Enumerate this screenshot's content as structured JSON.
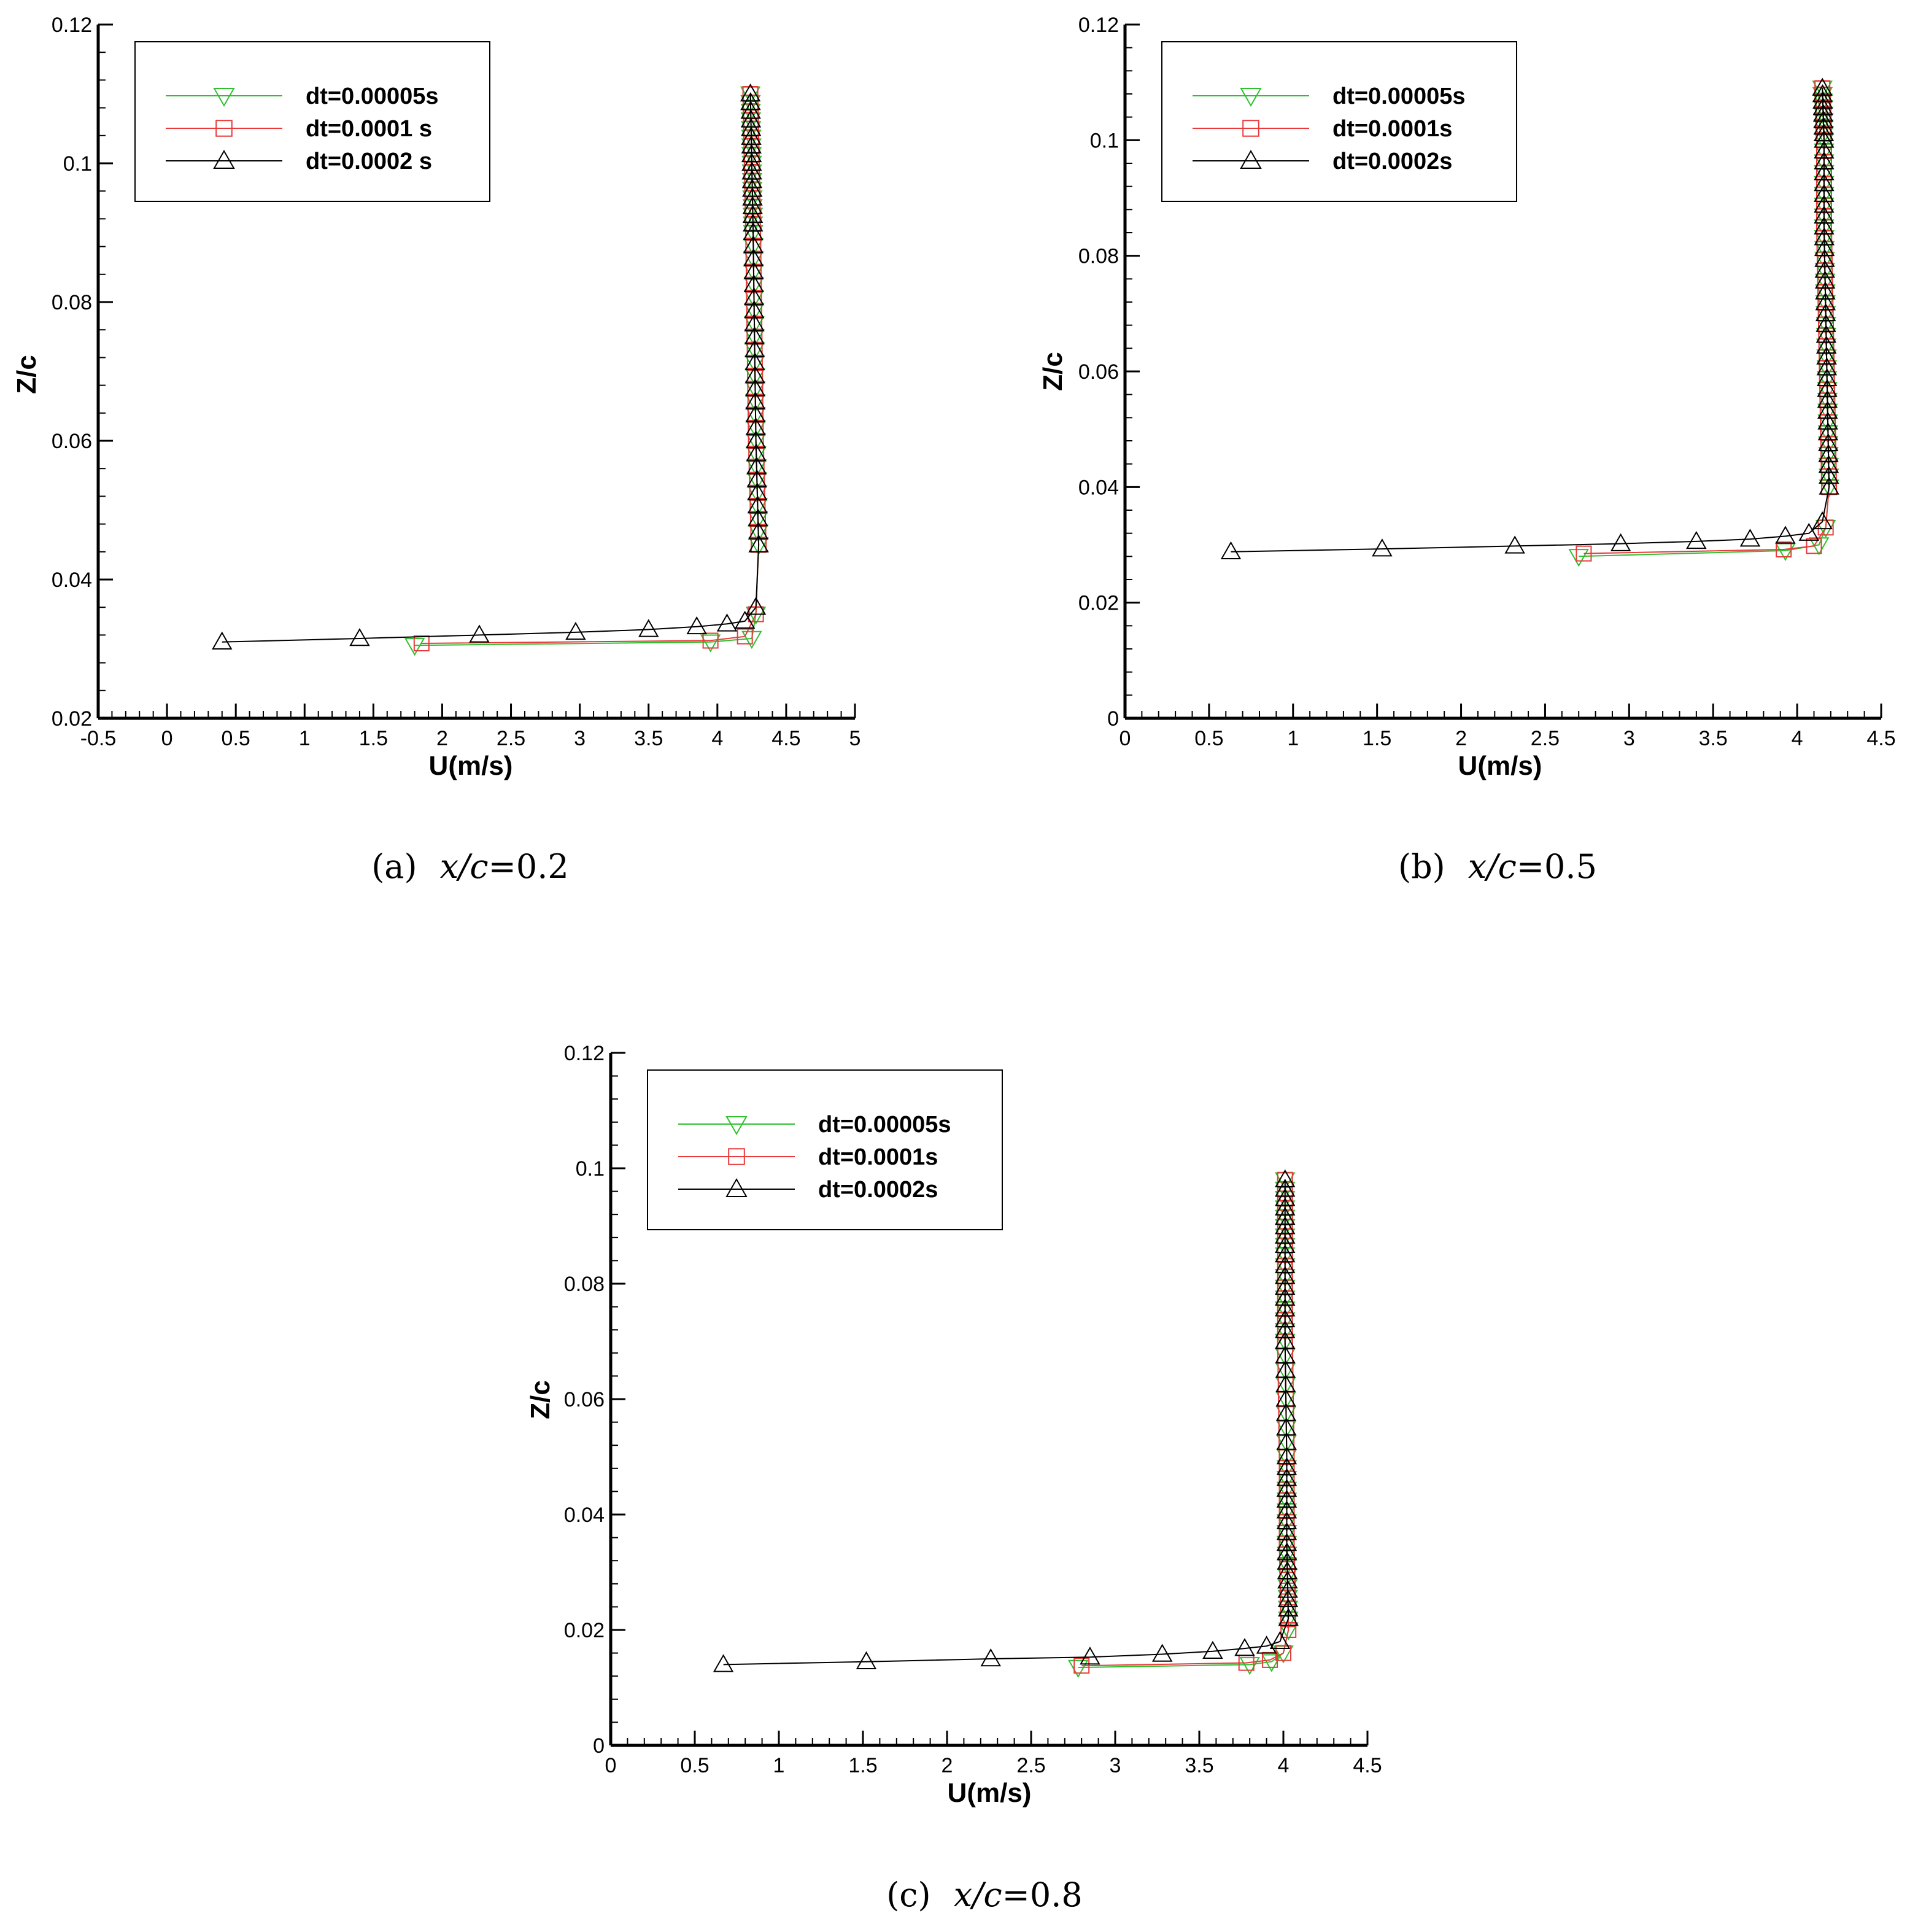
{
  "figure": {
    "panels": [
      {
        "caption_label": "(a)",
        "caption_expr": "x/c",
        "caption_value": "=0.2"
      },
      {
        "caption_label": "(b)",
        "caption_expr": "x/c",
        "caption_value": "=0.5"
      },
      {
        "caption_label": "(c)",
        "caption_expr": "x/c",
        "caption_value": "=0.8"
      }
    ]
  },
  "colors": {
    "dt_00005": "#2fbf2f",
    "dt_0001": "#e83a3a",
    "dt_0002": "#000000"
  },
  "chart_data": [
    {
      "type": "line",
      "xlabel": "U(m/s)",
      "ylabel": "Z/c",
      "xlim": [
        -0.5,
        5
      ],
      "ylim": [
        0.02,
        0.12
      ],
      "xticks": [
        -0.5,
        0,
        0.5,
        1,
        1.5,
        2,
        2.5,
        3,
        3.5,
        4,
        4.5,
        5
      ],
      "xtick_labels": [
        "-0.5",
        "0",
        "0.5",
        "1",
        "1.5",
        "2",
        "2.5",
        "3",
        "3.5",
        "4",
        "4.5",
        "5"
      ],
      "yticks": [
        0.02,
        0.04,
        0.06,
        0.08,
        0.1,
        0.12
      ],
      "ytick_labels": [
        "0.02",
        "0.04",
        "0.06",
        "0.08",
        "0.1",
        "0.12"
      ],
      "legend_position": "top-left",
      "series": [
        {
          "name": "dt=0.00005s",
          "marker": "triangle-down",
          "color": "#2fbf2f",
          "x": [
            1.8,
            3.95,
            4.25,
            4.28,
            4.3,
            4.28,
            4.27,
            4.26,
            4.25,
            4.24
          ],
          "y": [
            0.0305,
            0.031,
            0.0315,
            0.035,
            0.045,
            0.06,
            0.075,
            0.09,
            0.1,
            0.11
          ]
        },
        {
          "name": "dt=0.0001 s",
          "marker": "square",
          "color": "#e83a3a",
          "x": [
            1.85,
            3.95,
            4.2,
            4.28,
            4.3,
            4.28,
            4.27,
            4.26,
            4.25,
            4.24
          ],
          "y": [
            0.0308,
            0.0312,
            0.0318,
            0.035,
            0.045,
            0.06,
            0.075,
            0.09,
            0.1,
            0.11
          ]
        },
        {
          "name": "dt=0.0002 s",
          "marker": "triangle-up",
          "color": "#000000",
          "x": [
            0.4,
            1.4,
            2.27,
            2.97,
            3.5,
            3.85,
            4.07,
            4.2,
            4.28,
            4.3,
            4.28,
            4.27,
            4.26,
            4.25,
            4.24
          ],
          "y": [
            0.031,
            0.0315,
            0.032,
            0.0324,
            0.0328,
            0.0332,
            0.0336,
            0.034,
            0.036,
            0.045,
            0.06,
            0.075,
            0.09,
            0.1,
            0.11
          ]
        }
      ]
    },
    {
      "type": "line",
      "xlabel": "U(m/s)",
      "ylabel": "Z/c",
      "xlim": [
        0,
        4.5
      ],
      "ylim": [
        0,
        0.12
      ],
      "xticks": [
        0,
        0.5,
        1,
        1.5,
        2,
        2.5,
        3,
        3.5,
        4,
        4.5
      ],
      "xtick_labels": [
        "0",
        "0.5",
        "1",
        "1.5",
        "2",
        "2.5",
        "3",
        "3.5",
        "4",
        "4.5"
      ],
      "yticks": [
        0,
        0.02,
        0.04,
        0.06,
        0.08,
        0.1,
        0.12
      ],
      "ytick_labels": [
        "0",
        "0.02",
        "0.04",
        "0.06",
        "0.08",
        "0.1",
        "0.12"
      ],
      "legend_position": "top-left",
      "series": [
        {
          "name": "dt=0.00005s",
          "marker": "triangle-down",
          "color": "#2fbf2f",
          "x": [
            2.7,
            3.93,
            4.13,
            4.17,
            4.19,
            4.18,
            4.17,
            4.16,
            4.16,
            4.15
          ],
          "y": [
            0.028,
            0.029,
            0.03,
            0.033,
            0.04,
            0.055,
            0.07,
            0.085,
            0.1,
            0.109
          ]
        },
        {
          "name": "dt=0.0001s",
          "marker": "square",
          "color": "#e83a3a",
          "x": [
            2.73,
            3.92,
            4.1,
            4.17,
            4.19,
            4.18,
            4.17,
            4.16,
            4.16,
            4.15
          ],
          "y": [
            0.0285,
            0.0292,
            0.0298,
            0.033,
            0.04,
            0.055,
            0.07,
            0.085,
            0.1,
            0.109
          ]
        },
        {
          "name": "dt=0.0002s",
          "marker": "triangle-up",
          "color": "#000000",
          "x": [
            0.63,
            1.53,
            2.32,
            2.95,
            3.4,
            3.72,
            3.93,
            4.07,
            4.15,
            4.19,
            4.18,
            4.17,
            4.16,
            4.16,
            4.15
          ],
          "y": [
            0.0288,
            0.0293,
            0.0298,
            0.0302,
            0.0306,
            0.031,
            0.0315,
            0.032,
            0.034,
            0.04,
            0.055,
            0.07,
            0.085,
            0.1,
            0.109
          ]
        }
      ]
    },
    {
      "type": "line",
      "xlabel": "U(m/s)",
      "ylabel": "Z/c",
      "xlim": [
        0,
        4.5
      ],
      "ylim": [
        0,
        0.12
      ],
      "xticks": [
        0,
        0.5,
        1,
        1.5,
        2,
        2.5,
        3,
        3.5,
        4,
        4.5
      ],
      "xtick_labels": [
        "0",
        "0.5",
        "1",
        "1.5",
        "2",
        "2.5",
        "3",
        "3.5",
        "4",
        "4.5"
      ],
      "yticks": [
        0,
        0.02,
        0.04,
        0.06,
        0.08,
        0.1,
        0.12
      ],
      "ytick_labels": [
        "0",
        "0.02",
        "0.04",
        "0.06",
        "0.08",
        "0.1",
        "0.12"
      ],
      "legend_position": "top-left",
      "series": [
        {
          "name": "dt=0.00005s",
          "marker": "triangle-down",
          "color": "#2fbf2f",
          "x": [
            2.78,
            3.8,
            3.93,
            4.0,
            4.03,
            4.02,
            4.02,
            4.01,
            4.01,
            4.01
          ],
          "y": [
            0.0135,
            0.014,
            0.0145,
            0.016,
            0.02,
            0.035,
            0.05,
            0.07,
            0.085,
            0.098
          ]
        },
        {
          "name": "dt=0.0001s",
          "marker": "square",
          "color": "#e83a3a",
          "x": [
            2.8,
            3.78,
            3.92,
            4.0,
            4.03,
            4.02,
            4.02,
            4.01,
            4.01,
            4.01
          ],
          "y": [
            0.0138,
            0.0143,
            0.0148,
            0.016,
            0.02,
            0.035,
            0.05,
            0.07,
            0.085,
            0.098
          ]
        },
        {
          "name": "dt=0.0002s",
          "marker": "triangle-up",
          "color": "#000000",
          "x": [
            0.67,
            1.52,
            2.26,
            2.85,
            3.28,
            3.58,
            3.77,
            3.9,
            3.98,
            4.03,
            4.02,
            4.02,
            4.01,
            4.01,
            4.01
          ],
          "y": [
            0.014,
            0.0145,
            0.015,
            0.0153,
            0.0158,
            0.0163,
            0.0168,
            0.0172,
            0.018,
            0.022,
            0.035,
            0.05,
            0.07,
            0.085,
            0.098
          ]
        }
      ]
    }
  ]
}
